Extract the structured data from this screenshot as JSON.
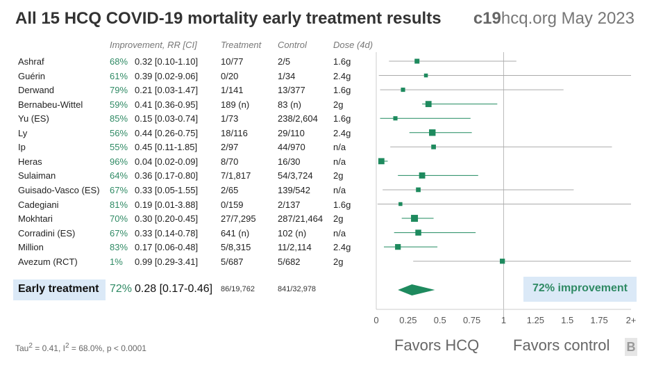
{
  "header": {
    "title": "All 15 HCQ COVID-19 mortality early treatment results",
    "site_bold": "c19",
    "site_rest": "hcq.org May 2023"
  },
  "columns": {
    "improvement": "Improvement, RR [CI]",
    "treatment": "Treatment",
    "control": "Control",
    "dose": "Dose (4d)"
  },
  "studies": [
    {
      "name": "Ashraf",
      "improvement": "68%",
      "rr_ci": "0.32 [0.10-1.10]",
      "treatment": "10/77",
      "control": "2/5",
      "dose": "1.6g",
      "rr": 0.32,
      "lo": 0.1,
      "hi": 1.1,
      "weight": 1.0
    },
    {
      "name": "Guérin",
      "improvement": "61%",
      "rr_ci": "0.39 [0.02-9.06]",
      "treatment": "0/20",
      "control": "1/34",
      "dose": "2.4g",
      "rr": 0.39,
      "lo": 0.02,
      "hi": 9.06,
      "weight": 0.5
    },
    {
      "name": "Derwand",
      "improvement": "79%",
      "rr_ci": "0.21 [0.03-1.47]",
      "treatment": "1/141",
      "control": "13/377",
      "dose": "1.6g",
      "rr": 0.21,
      "lo": 0.03,
      "hi": 1.47,
      "weight": 0.7
    },
    {
      "name": "Bernabeu-Wittel",
      "improvement": "59%",
      "rr_ci": "0.41 [0.36-0.95]",
      "treatment": "189 (n)",
      "control": "83 (n)",
      "dose": "2g",
      "rr": 0.41,
      "lo": 0.36,
      "hi": 0.95,
      "weight": 1.6
    },
    {
      "name": "Yu (ES)",
      "improvement": "85%",
      "rr_ci": "0.15 [0.03-0.74]",
      "treatment": "1/73",
      "control": "238/2,604",
      "dose": "1.6g",
      "rr": 0.15,
      "lo": 0.03,
      "hi": 0.74,
      "weight": 0.7
    },
    {
      "name": "Ly",
      "improvement": "56%",
      "rr_ci": "0.44 [0.26-0.75]",
      "treatment": "18/116",
      "control": "29/110",
      "dose": "2.4g",
      "rr": 0.44,
      "lo": 0.26,
      "hi": 0.75,
      "weight": 1.8
    },
    {
      "name": "Ip",
      "improvement": "55%",
      "rr_ci": "0.45 [0.11-1.85]",
      "treatment": "2/97",
      "control": "44/970",
      "dose": "n/a",
      "rr": 0.45,
      "lo": 0.11,
      "hi": 1.85,
      "weight": 0.9
    },
    {
      "name": "Heras",
      "improvement": "96%",
      "rr_ci": "0.04 [0.02-0.09]",
      "treatment": "8/70",
      "control": "16/30",
      "dose": "n/a",
      "rr": 0.04,
      "lo": 0.02,
      "hi": 0.09,
      "weight": 1.6
    },
    {
      "name": "Sulaiman",
      "improvement": "64%",
      "rr_ci": "0.36 [0.17-0.80]",
      "treatment": "7/1,817",
      "control": "54/3,724",
      "dose": "2g",
      "rr": 0.36,
      "lo": 0.17,
      "hi": 0.8,
      "weight": 1.6
    },
    {
      "name": "Guisado-Vasco (ES)",
      "improvement": "67%",
      "rr_ci": "0.33 [0.05-1.55]",
      "treatment": "2/65",
      "control": "139/542",
      "dose": "n/a",
      "rr": 0.33,
      "lo": 0.05,
      "hi": 1.55,
      "weight": 0.9
    },
    {
      "name": "Cadegiani",
      "improvement": "81%",
      "rr_ci": "0.19 [0.01-3.88]",
      "treatment": "0/159",
      "control": "2/137",
      "dose": "1.6g",
      "rr": 0.19,
      "lo": 0.01,
      "hi": 3.88,
      "weight": 0.5
    },
    {
      "name": "Mokhtari",
      "improvement": "70%",
      "rr_ci": "0.30 [0.20-0.45]",
      "treatment": "27/7,295",
      "control": "287/21,464",
      "dose": "2g",
      "rr": 0.3,
      "lo": 0.2,
      "hi": 0.45,
      "weight": 2.0
    },
    {
      "name": "Corradini (ES)",
      "improvement": "67%",
      "rr_ci": "0.33 [0.14-0.78]",
      "treatment": "641 (n)",
      "control": "102 (n)",
      "dose": "n/a",
      "rr": 0.33,
      "lo": 0.14,
      "hi": 0.78,
      "weight": 1.5
    },
    {
      "name": "Million",
      "improvement": "83%",
      "rr_ci": "0.17 [0.06-0.48]",
      "treatment": "5/8,315",
      "control": "11/2,114",
      "dose": "2.4g",
      "rr": 0.17,
      "lo": 0.06,
      "hi": 0.48,
      "weight": 1.4
    },
    {
      "name": "Avezum (RCT)",
      "improvement": "1%",
      "rr_ci": "0.99 [0.29-3.41]",
      "treatment": "5/687",
      "control": "5/682",
      "dose": "2g",
      "rr": 0.99,
      "lo": 0.29,
      "hi": 3.41,
      "weight": 1.1
    }
  ],
  "summary": {
    "label": "Early treatment",
    "improvement": "72%",
    "rr_ci": "0.28 [0.17-0.46]",
    "treatment": "86/19,762",
    "control": "841/32,978",
    "badge": "72% improvement",
    "rr": 0.28,
    "lo": 0.17,
    "hi": 0.46
  },
  "axis": {
    "ticks": [
      "0",
      "0.25",
      "0.5",
      "0.75",
      "1",
      "1.25",
      "1.5",
      "1.75",
      "2+"
    ],
    "tick_values": [
      0,
      0.25,
      0.5,
      0.75,
      1,
      1.25,
      1.5,
      1.75,
      2
    ],
    "favors_left": "Favors HCQ",
    "favors_right": "Favors control"
  },
  "stats": {
    "tau_prefix": "Tau",
    "tau_suffix": " = 0.41, I",
    "i_suffix": " = 68.0%, p < 0.0001",
    "sup": "2"
  },
  "logo": "B",
  "colors": {
    "accent": "#1e8a5e",
    "improve_text": "#2f8a64",
    "box_bg": "#dbe9f7",
    "ci_line": "#999999"
  },
  "chart_data": {
    "type": "forest",
    "categories": [
      "Ashraf",
      "Guérin",
      "Derwand",
      "Bernabeu-Wittel",
      "Yu (ES)",
      "Ly",
      "Ip",
      "Heras",
      "Sulaiman",
      "Guisado-Vasco (ES)",
      "Cadegiani",
      "Mokhtari",
      "Corradini (ES)",
      "Million",
      "Avezum (RCT)"
    ],
    "rr": [
      0.32,
      0.39,
      0.21,
      0.41,
      0.15,
      0.44,
      0.45,
      0.04,
      0.36,
      0.33,
      0.19,
      0.3,
      0.33,
      0.17,
      0.99
    ],
    "ci_low": [
      0.1,
      0.02,
      0.03,
      0.36,
      0.03,
      0.26,
      0.11,
      0.02,
      0.17,
      0.05,
      0.01,
      0.2,
      0.14,
      0.06,
      0.29
    ],
    "ci_high": [
      1.1,
      9.06,
      1.47,
      0.95,
      0.74,
      0.75,
      1.85,
      0.09,
      0.8,
      1.55,
      3.88,
      0.45,
      0.78,
      0.48,
      3.41
    ],
    "pooled": {
      "rr": 0.28,
      "ci_low": 0.17,
      "ci_high": 0.46
    },
    "xlim": [
      0,
      2
    ],
    "xlabel": "",
    "ylabel": ""
  }
}
